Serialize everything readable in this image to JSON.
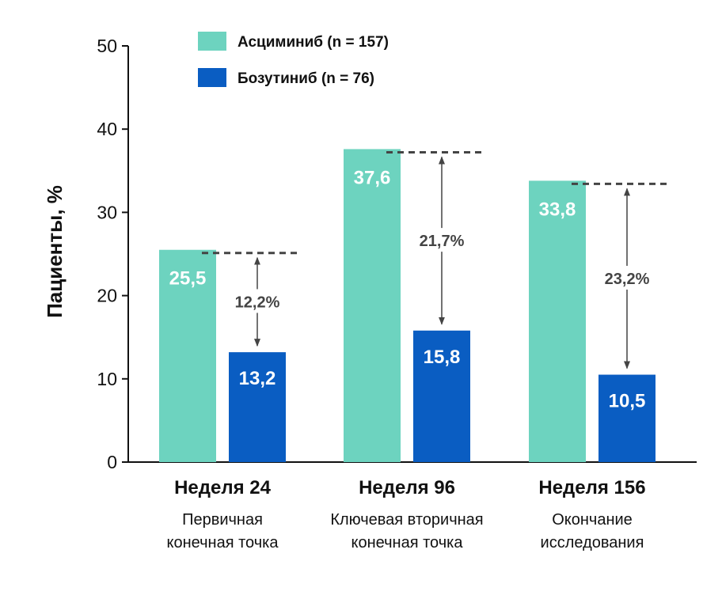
{
  "chart_data": {
    "type": "bar",
    "categories": [
      "Неделя 24",
      "Неделя 96",
      "Неделя 156"
    ],
    "category_subtitles": [
      [
        "Первичная",
        "конечная точка"
      ],
      [
        "Ключевая вторичная",
        "конечная точка"
      ],
      [
        "Окончание",
        "исследования"
      ]
    ],
    "series": [
      {
        "name": "Асциминиб (n = 157)",
        "color": "#6dd3bf",
        "values": [
          25.5,
          37.6,
          33.8
        ],
        "labels": [
          "25,5",
          "37,6",
          "33,8"
        ]
      },
      {
        "name": "Бозутиниб (n = 76)",
        "color": "#0a5dc2",
        "values": [
          13.2,
          15.8,
          10.5
        ],
        "labels": [
          "13,2",
          "15,8",
          "10,5"
        ]
      }
    ],
    "differences": [
      "12,2%",
      "21,7%",
      "23,2%"
    ],
    "ylabel": "Пациенты, %",
    "ylim": [
      0,
      50
    ],
    "yticks": [
      0,
      10,
      20,
      30,
      40,
      50
    ],
    "grid": false,
    "legend": "top-left"
  }
}
